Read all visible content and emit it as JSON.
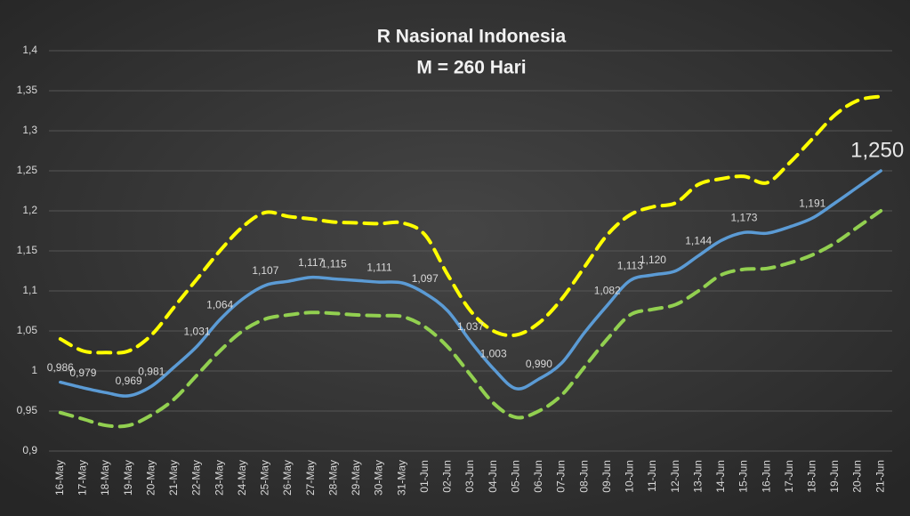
{
  "chart_data": {
    "type": "line",
    "title": "R Nasional Indonesia",
    "subtitle": "M = 260 Hari",
    "categories": [
      "16-May",
      "17-May",
      "18-May",
      "19-May",
      "20-May",
      "21-May",
      "22-May",
      "23-May",
      "24-May",
      "25-May",
      "26-May",
      "27-May",
      "28-May",
      "29-May",
      "30-May",
      "31-May",
      "01-Jun",
      "02-Jun",
      "03-Jun",
      "04-Jun",
      "05-Jun",
      "06-Jun",
      "07-Jun",
      "08-Jun",
      "09-Jun",
      "10-Jun",
      "11-Jun",
      "12-Jun",
      "13-Jun",
      "14-Jun",
      "15-Jun",
      "16-Jun",
      "17-Jun",
      "18-Jun",
      "19-Jun",
      "20-Jun",
      "21-Jun"
    ],
    "series": [
      {
        "color": "#5b9bd5",
        "dashed": false,
        "values": [
          0.986,
          0.979,
          0.973,
          0.969,
          0.981,
          1.005,
          1.031,
          1.064,
          1.09,
          1.107,
          1.112,
          1.117,
          1.115,
          1.113,
          1.111,
          1.11,
          1.097,
          1.075,
          1.037,
          1.003,
          0.978,
          0.99,
          1.01,
          1.048,
          1.082,
          1.113,
          1.12,
          1.125,
          1.144,
          1.163,
          1.173,
          1.172,
          1.18,
          1.191,
          1.21,
          1.23,
          1.25
        ],
        "value_labels": [
          "0,986",
          "0,979",
          null,
          "0,969",
          "0,981",
          null,
          "1,031",
          "1,064",
          null,
          "1,107",
          null,
          "1,117",
          "1,115",
          null,
          "1,111",
          null,
          "1,097",
          null,
          "1,037",
          "1,003",
          null,
          "0,990",
          null,
          null,
          "1,082",
          "1,113",
          "1,120",
          null,
          "1,144",
          null,
          "1,173",
          null,
          null,
          "1,191",
          null,
          null,
          "1,250"
        ]
      },
      {
        "color": "#ffff00",
        "dashed": true,
        "values": [
          1.04,
          1.025,
          1.023,
          1.025,
          1.045,
          1.08,
          1.115,
          1.15,
          1.18,
          1.198,
          1.193,
          1.19,
          1.186,
          1.185,
          1.184,
          1.185,
          1.17,
          1.12,
          1.075,
          1.05,
          1.045,
          1.06,
          1.09,
          1.13,
          1.17,
          1.195,
          1.205,
          1.21,
          1.233,
          1.24,
          1.243,
          1.235,
          1.26,
          1.29,
          1.32,
          1.338,
          1.343
        ]
      },
      {
        "color": "#92d050",
        "dashed": true,
        "values": [
          0.948,
          0.94,
          0.932,
          0.932,
          0.945,
          0.965,
          0.995,
          1.025,
          1.05,
          1.065,
          1.07,
          1.073,
          1.072,
          1.07,
          1.069,
          1.068,
          1.055,
          1.03,
          0.995,
          0.96,
          0.942,
          0.95,
          0.97,
          1.005,
          1.04,
          1.07,
          1.077,
          1.083,
          1.1,
          1.12,
          1.127,
          1.128,
          1.135,
          1.145,
          1.16,
          1.18,
          1.2
        ]
      }
    ],
    "ylim": [
      0.9,
      1.4
    ],
    "yticks": [
      {
        "value": 0.9,
        "label": "0,9"
      },
      {
        "value": 0.95,
        "label": "0,95"
      },
      1,
      {
        "value": 1.05,
        "label": "1,05"
      },
      {
        "value": 1.1,
        "label": "1,1"
      },
      {
        "value": 1.15,
        "label": "1,15"
      },
      {
        "value": 1.2,
        "label": "1,2"
      },
      {
        "value": 1.25,
        "label": "1,25"
      },
      {
        "value": 1.3,
        "label": "1,3"
      },
      {
        "value": 1.35,
        "label": "1,35"
      },
      {
        "value": 1.4,
        "label": "1,4"
      }
    ],
    "grid": true
  }
}
